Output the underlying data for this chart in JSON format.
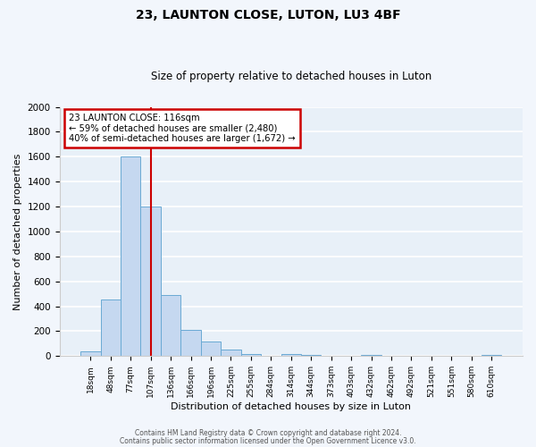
{
  "title": "23, LAUNTON CLOSE, LUTON, LU3 4BF",
  "subtitle": "Size of property relative to detached houses in Luton",
  "xlabel": "Distribution of detached houses by size in Luton",
  "ylabel": "Number of detached properties",
  "bar_labels": [
    "18sqm",
    "48sqm",
    "77sqm",
    "107sqm",
    "136sqm",
    "166sqm",
    "196sqm",
    "225sqm",
    "255sqm",
    "284sqm",
    "314sqm",
    "344sqm",
    "373sqm",
    "403sqm",
    "432sqm",
    "462sqm",
    "492sqm",
    "521sqm",
    "551sqm",
    "580sqm",
    "610sqm"
  ],
  "bar_values": [
    35,
    455,
    1600,
    1200,
    490,
    210,
    115,
    50,
    20,
    0,
    20,
    10,
    0,
    0,
    10,
    0,
    0,
    0,
    0,
    0,
    10
  ],
  "bar_color": "#c5d8f0",
  "bar_edge_color": "#6aaad4",
  "background_color": "#e8f0f8",
  "fig_background_color": "#f2f6fc",
  "grid_color": "#ffffff",
  "vline_color": "#cc0000",
  "annotation_title": "23 LAUNTON CLOSE: 116sqm",
  "annotation_line1": "← 59% of detached houses are smaller (2,480)",
  "annotation_line2": "40% of semi-detached houses are larger (1,672) →",
  "annotation_box_color": "#cc0000",
  "ylim": [
    0,
    2000
  ],
  "yticks": [
    0,
    200,
    400,
    600,
    800,
    1000,
    1200,
    1400,
    1600,
    1800,
    2000
  ],
  "footer1": "Contains HM Land Registry data © Crown copyright and database right 2024.",
  "footer2": "Contains public sector information licensed under the Open Government Licence v3.0."
}
